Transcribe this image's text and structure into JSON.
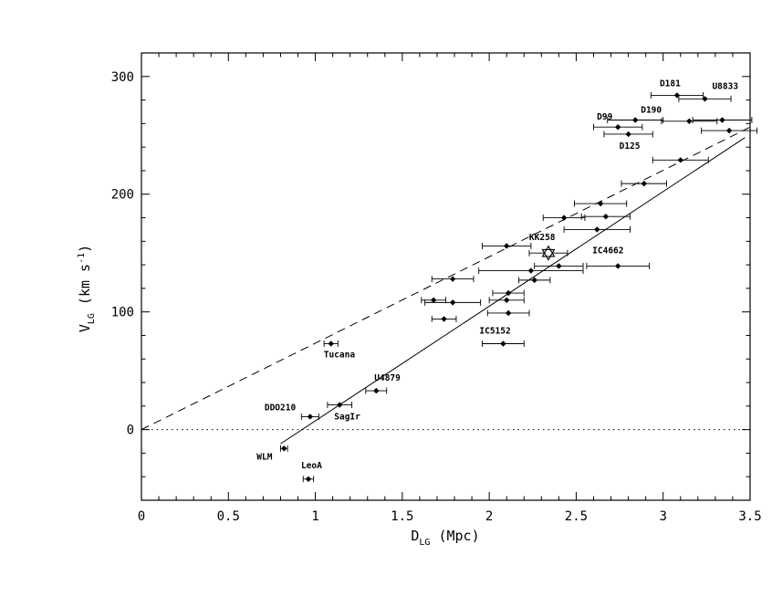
{
  "chart_data": {
    "type": "scatter",
    "xlabel": {
      "main": "D",
      "sub": "LG",
      "rest": " (Mpc)"
    },
    "ylabel": {
      "main": "V",
      "sub": "LG",
      "rest": " (km s",
      "sup": "-1",
      "close": ")"
    },
    "xlim": [
      0,
      3.5
    ],
    "ylim": [
      -60,
      320
    ],
    "xticks": [
      "0",
      "0.5",
      "1",
      "1.5",
      "2",
      "2.5",
      "3",
      "3.5"
    ],
    "yticks": [
      "0",
      "100",
      "200",
      "300"
    ],
    "grid": false,
    "points": [
      {
        "x": 0.82,
        "y": -16,
        "xerr": 0.02,
        "label": "WLM"
      },
      {
        "x": 0.96,
        "y": -42,
        "xerr": 0.03,
        "label": "LeoA"
      },
      {
        "x": 0.97,
        "y": 11,
        "xerr": 0.05,
        "label": "DDO210"
      },
      {
        "x": 1.14,
        "y": 21,
        "xerr": 0.07,
        "label": "SagIr"
      },
      {
        "x": 1.09,
        "y": 73,
        "xerr": 0.04,
        "label": "Tucana"
      },
      {
        "x": 1.35,
        "y": 33,
        "xerr": 0.06,
        "label": "U4879"
      },
      {
        "x": 1.68,
        "y": 110,
        "xerr": 0.07
      },
      {
        "x": 1.74,
        "y": 94,
        "xerr": 0.07
      },
      {
        "x": 1.79,
        "y": 108,
        "xerr": 0.16
      },
      {
        "x": 1.79,
        "y": 128,
        "xerr": 0.12
      },
      {
        "x": 2.1,
        "y": 156,
        "xerr": 0.14
      },
      {
        "x": 2.08,
        "y": 73,
        "xerr": 0.12,
        "label": "IC5152"
      },
      {
        "x": 2.11,
        "y": 99,
        "xerr": 0.12
      },
      {
        "x": 2.1,
        "y": 110,
        "xerr": 0.1
      },
      {
        "x": 2.11,
        "y": 116,
        "xerr": 0.09
      },
      {
        "x": 2.26,
        "y": 127,
        "xerr": 0.09
      },
      {
        "x": 2.24,
        "y": 135,
        "xerr": 0.3
      },
      {
        "x": 2.4,
        "y": 139,
        "xerr": 0.14
      },
      {
        "x": 2.34,
        "y": 150,
        "xerr": 0.11,
        "label": "KK258",
        "marker": "star"
      },
      {
        "x": 2.43,
        "y": 180,
        "xerr": 0.12
      },
      {
        "x": 2.62,
        "y": 170,
        "xerr": 0.19
      },
      {
        "x": 2.64,
        "y": 192,
        "xerr": 0.15
      },
      {
        "x": 2.67,
        "y": 181,
        "xerr": 0.14
      },
      {
        "x": 2.74,
        "y": 139,
        "xerr": 0.18,
        "label": "IC4662"
      },
      {
        "x": 2.89,
        "y": 209,
        "xerr": 0.13
      },
      {
        "x": 3.1,
        "y": 229,
        "xerr": 0.16
      },
      {
        "x": 2.74,
        "y": 257,
        "xerr": 0.14,
        "label": "D99"
      },
      {
        "x": 2.8,
        "y": 251,
        "xerr": 0.14,
        "label": "D125"
      },
      {
        "x": 2.84,
        "y": 263,
        "xerr": 0.16,
        "label": "D190"
      },
      {
        "x": 3.08,
        "y": 284,
        "xerr": 0.15,
        "label": "D181"
      },
      {
        "x": 3.24,
        "y": 281,
        "xerr": 0.15,
        "label": "U8833"
      },
      {
        "x": 3.15,
        "y": 262,
        "xerr": 0.16
      },
      {
        "x": 3.34,
        "y": 263,
        "xerr": 0.17
      },
      {
        "x": 3.38,
        "y": 254,
        "xerr": 0.16
      }
    ],
    "lines": [
      {
        "style": "solid",
        "x": [
          0.8,
          3.47
        ],
        "y": [
          -12,
          248
        ]
      },
      {
        "style": "dashed",
        "x": [
          0,
          3.5
        ],
        "y": [
          0,
          257
        ]
      },
      {
        "style": "dotted",
        "x": [
          0,
          3.5
        ],
        "y": [
          0,
          0
        ]
      }
    ]
  }
}
